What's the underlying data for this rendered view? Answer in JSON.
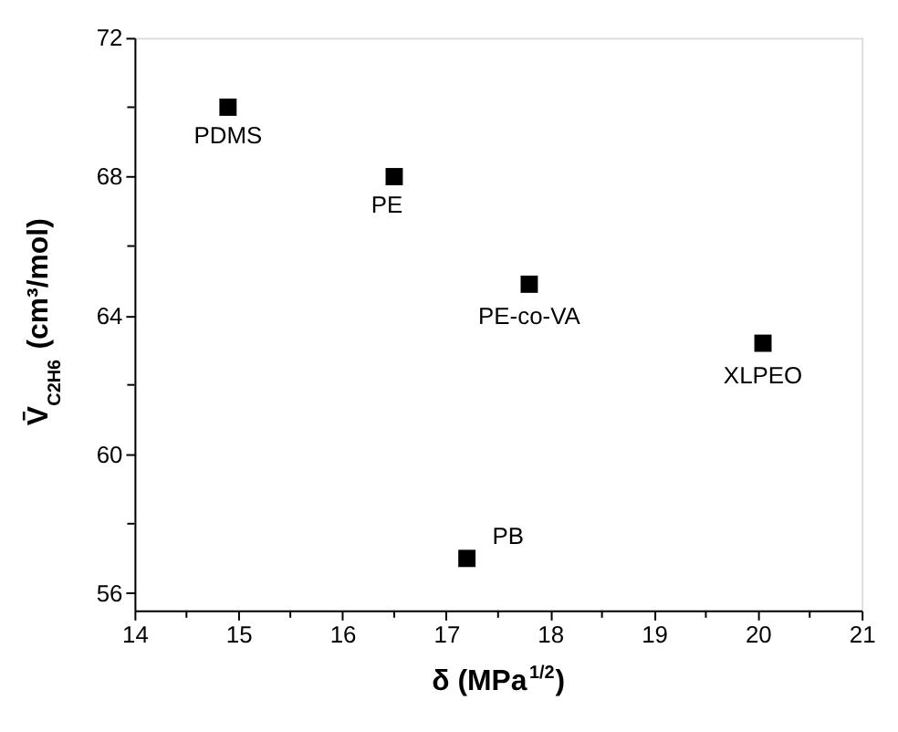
{
  "chart_data": {
    "type": "scatter",
    "xlabel": "δ (MPa$^{1/2}$)",
    "ylabel": "V̄$_{C2H6}$ (cm³/mol)",
    "x": [
      14.9,
      16.5,
      17.8,
      20.05,
      17.2
    ],
    "series": [
      {
        "color": "#000000",
        "values": [
          70.0,
          68.0,
          64.9,
          63.2,
          57.0
        ]
      }
    ],
    "marker": "square",
    "xlim": [
      14,
      21
    ],
    "ylim": [
      55.5,
      72
    ],
    "xticks": [
      14,
      {
        "value": 14.5,
        "label": null
      },
      15,
      {
        "value": 15.5,
        "label": null
      },
      16,
      {
        "value": 16.5,
        "label": null
      },
      17,
      {
        "value": 17.5,
        "label": null
      },
      18,
      {
        "value": 18.5,
        "label": null
      },
      19,
      {
        "value": 19.5,
        "label": null
      },
      20,
      {
        "value": 20.5,
        "label": null
      },
      21
    ],
    "yticks": [
      56,
      {
        "value": 58,
        "label": null
      },
      60,
      {
        "value": 62,
        "label": null
      },
      64,
      {
        "value": 66,
        "label": null
      },
      68,
      {
        "value": 70,
        "label": null
      },
      72
    ],
    "grid": false,
    "legend": false,
    "annotations": [
      {
        "text": "PDMS",
        "x": 14.9,
        "y": 70.0
      },
      {
        "text": "PE",
        "x": 16.5,
        "y": 68.0
      },
      {
        "text": "PE-co-VA",
        "x": 17.8,
        "y": 64.9
      },
      {
        "text": "XLPEO",
        "x": 20.05,
        "y": 63.2
      },
      {
        "text": "PB",
        "x": 17.2,
        "y": 57.0
      }
    ]
  }
}
